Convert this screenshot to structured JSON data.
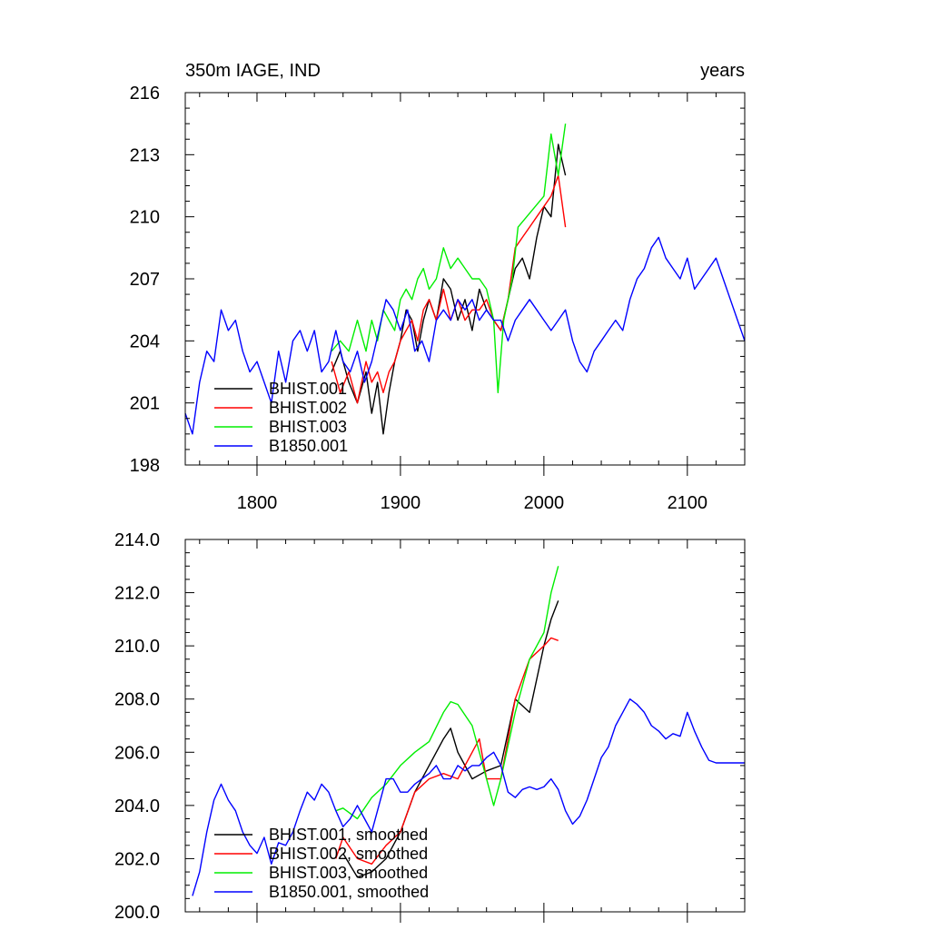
{
  "chart_data": [
    {
      "type": "line",
      "title": "350m IAGE, IND",
      "units": "years",
      "xlim": [
        1750,
        2140
      ],
      "ylim": [
        198,
        216
      ],
      "x_ticks": [
        1800,
        1900,
        2000,
        2100
      ],
      "x_tick_labels": [
        "1800",
        "1900",
        "2000",
        "2100"
      ],
      "y_ticks": [
        198,
        201,
        204,
        207,
        210,
        213,
        216
      ],
      "y_tick_labels": [
        "198",
        "201",
        "204",
        "207",
        "210",
        "213",
        "216"
      ],
      "legend_position": "bottom-left",
      "series": [
        {
          "name": "BHIST.001",
          "color": "#000000",
          "x": [
            1852,
            1858,
            1864,
            1870,
            1876,
            1880,
            1884,
            1888,
            1892,
            1896,
            1900,
            1904,
            1908,
            1912,
            1916,
            1920,
            1925,
            1930,
            1935,
            1940,
            1945,
            1950,
            1955,
            1960,
            1965,
            1970,
            1975,
            1980,
            1985,
            1990,
            1995,
            2000,
            2005,
            2010,
            2015
          ],
          "y": [
            202.5,
            203.5,
            202.0,
            201.0,
            202.5,
            200.5,
            202.0,
            199.5,
            201.5,
            203.0,
            204.0,
            205.5,
            205.0,
            203.5,
            205.0,
            206.0,
            205.0,
            207.0,
            206.5,
            205.0,
            206.0,
            204.5,
            206.5,
            205.5,
            205.0,
            204.5,
            206.0,
            207.5,
            208.0,
            207.0,
            209.0,
            210.5,
            210.0,
            213.5,
            212.0
          ]
        },
        {
          "name": "BHIST.002",
          "color": "#ff0000",
          "x": [
            1852,
            1858,
            1864,
            1870,
            1876,
            1880,
            1884,
            1888,
            1892,
            1896,
            1900,
            1904,
            1908,
            1912,
            1916,
            1920,
            1925,
            1930,
            1935,
            1940,
            1945,
            1950,
            1955,
            1960,
            1965,
            1970,
            1975,
            1980,
            1985,
            1990,
            1995,
            2000,
            2005,
            2010,
            2015
          ],
          "y": [
            203.0,
            201.5,
            202.5,
            201.0,
            203.0,
            202.0,
            202.5,
            201.5,
            202.5,
            203.0,
            204.0,
            204.5,
            205.0,
            204.0,
            205.5,
            206.0,
            205.0,
            206.5,
            205.0,
            206.0,
            205.0,
            205.5,
            205.5,
            206.0,
            205.0,
            204.5,
            206.0,
            208.5,
            209.0,
            209.5,
            210.0,
            210.5,
            211.0,
            212.0,
            209.5
          ]
        },
        {
          "name": "BHIST.003",
          "color": "#00ee00",
          "x": [
            1852,
            1858,
            1864,
            1870,
            1876,
            1880,
            1884,
            1888,
            1892,
            1896,
            1900,
            1904,
            1908,
            1912,
            1916,
            1920,
            1925,
            1930,
            1935,
            1940,
            1945,
            1950,
            1955,
            1960,
            1965,
            1968,
            1972,
            1978,
            1982,
            1988,
            1994,
            2000,
            2005,
            2010,
            2015
          ],
          "y": [
            203.5,
            204.0,
            203.5,
            205.0,
            203.5,
            205.0,
            204.0,
            205.5,
            205.0,
            204.5,
            206.0,
            206.5,
            206.0,
            207.0,
            207.5,
            206.5,
            207.0,
            208.5,
            207.5,
            208.0,
            207.5,
            207.0,
            207.0,
            206.5,
            205.0,
            201.5,
            205.0,
            207.0,
            209.5,
            210.0,
            210.5,
            211.0,
            214.0,
            212.0,
            214.5
          ]
        },
        {
          "name": "B1850.001",
          "color": "#0000ff",
          "x": [
            1750,
            1755,
            1760,
            1765,
            1770,
            1775,
            1780,
            1785,
            1790,
            1795,
            1800,
            1805,
            1810,
            1815,
            1820,
            1825,
            1830,
            1835,
            1840,
            1845,
            1850,
            1855,
            1860,
            1865,
            1870,
            1875,
            1880,
            1885,
            1890,
            1895,
            1900,
            1905,
            1910,
            1915,
            1920,
            1925,
            1930,
            1935,
            1940,
            1945,
            1950,
            1955,
            1960,
            1965,
            1970,
            1975,
            1980,
            1985,
            1990,
            1995,
            2000,
            2005,
            2010,
            2015,
            2020,
            2025,
            2030,
            2035,
            2040,
            2045,
            2050,
            2055,
            2060,
            2065,
            2070,
            2075,
            2080,
            2085,
            2090,
            2095,
            2100,
            2105,
            2110,
            2115,
            2120,
            2125,
            2130,
            2135,
            2140
          ],
          "y": [
            200.5,
            199.5,
            202.0,
            203.5,
            203.0,
            205.5,
            204.5,
            205.0,
            203.5,
            202.5,
            203.0,
            202.0,
            201.0,
            203.5,
            202.0,
            204.0,
            204.5,
            203.5,
            204.5,
            202.5,
            203.0,
            204.5,
            203.0,
            202.5,
            203.5,
            202.0,
            203.0,
            204.5,
            206.0,
            205.5,
            204.5,
            205.5,
            203.5,
            204.0,
            203.0,
            205.0,
            205.5,
            205.0,
            206.0,
            205.5,
            206.0,
            205.0,
            205.5,
            205.0,
            205.0,
            204.0,
            205.0,
            205.5,
            206.0,
            205.5,
            205.0,
            204.5,
            205.0,
            205.5,
            204.0,
            203.0,
            202.5,
            203.5,
            204.0,
            204.5,
            205.0,
            204.5,
            206.0,
            207.0,
            207.5,
            208.5,
            209.0,
            208.0,
            207.5,
            207.0,
            208.0,
            206.5,
            207.0,
            207.5,
            208.0,
            207.0,
            206.0,
            205.0,
            204.0
          ]
        }
      ]
    },
    {
      "type": "line",
      "xlim": [
        1750,
        2140
      ],
      "ylim": [
        200.0,
        214.0
      ],
      "x_ticks": [
        1800,
        1900,
        2000,
        2100
      ],
      "y_ticks": [
        200.0,
        202.0,
        204.0,
        206.0,
        208.0,
        210.0,
        212.0,
        214.0
      ],
      "y_tick_labels": [
        "200.0",
        "202.0",
        "204.0",
        "206.0",
        "208.0",
        "210.0",
        "212.0",
        "214.0"
      ],
      "legend_position": "bottom-left",
      "series": [
        {
          "name": "BHIST.001, smoothed",
          "color": "#000000",
          "x": [
            1860,
            1870,
            1880,
            1890,
            1900,
            1910,
            1920,
            1930,
            1935,
            1940,
            1950,
            1960,
            1970,
            1980,
            1990,
            2000,
            2005,
            2010
          ],
          "y": [
            202.2,
            201.3,
            201.5,
            202.0,
            203.0,
            204.5,
            205.5,
            206.5,
            206.9,
            206.0,
            205.0,
            205.3,
            205.5,
            208.0,
            207.5,
            210.0,
            211.0,
            211.7
          ]
        },
        {
          "name": "BHIST.002, smoothed",
          "color": "#ff0000",
          "x": [
            1855,
            1860,
            1870,
            1880,
            1890,
            1900,
            1910,
            1920,
            1930,
            1940,
            1950,
            1955,
            1960,
            1970,
            1980,
            1990,
            2000,
            2005,
            2010
          ],
          "y": [
            202.0,
            202.8,
            202.0,
            201.8,
            202.5,
            203.0,
            204.5,
            205.0,
            205.2,
            205.0,
            206.0,
            206.5,
            205.0,
            205.0,
            208.0,
            209.5,
            210.0,
            210.3,
            210.2
          ]
        },
        {
          "name": "BHIST.003, smoothed",
          "color": "#00ee00",
          "x": [
            1855,
            1860,
            1870,
            1880,
            1890,
            1900,
            1910,
            1920,
            1930,
            1935,
            1940,
            1950,
            1960,
            1965,
            1970,
            1980,
            1990,
            2000,
            2005,
            2010
          ],
          "y": [
            203.8,
            203.9,
            203.5,
            204.3,
            204.8,
            205.5,
            206.0,
            206.4,
            207.5,
            207.9,
            207.8,
            207.0,
            205.0,
            204.0,
            205.0,
            207.5,
            209.5,
            210.5,
            212.0,
            213.0
          ]
        },
        {
          "name": "B1850.001, smoothed",
          "color": "#0000ff",
          "x": [
            1755,
            1760,
            1765,
            1770,
            1775,
            1780,
            1785,
            1790,
            1795,
            1800,
            1805,
            1810,
            1815,
            1820,
            1825,
            1830,
            1835,
            1840,
            1845,
            1850,
            1855,
            1860,
            1865,
            1870,
            1875,
            1880,
            1885,
            1890,
            1895,
            1900,
            1905,
            1910,
            1915,
            1920,
            1925,
            1930,
            1935,
            1940,
            1945,
            1950,
            1955,
            1960,
            1965,
            1970,
            1975,
            1980,
            1985,
            1990,
            1995,
            2000,
            2005,
            2010,
            2015,
            2020,
            2025,
            2030,
            2035,
            2040,
            2045,
            2050,
            2055,
            2060,
            2065,
            2070,
            2075,
            2080,
            2085,
            2090,
            2095,
            2100,
            2105,
            2110,
            2115,
            2120,
            2125,
            2130,
            2135,
            2140
          ],
          "y": [
            200.6,
            201.5,
            203.0,
            204.2,
            204.8,
            204.2,
            203.8,
            203.0,
            202.5,
            202.2,
            202.8,
            201.8,
            202.6,
            202.5,
            203.0,
            203.8,
            204.5,
            204.2,
            204.8,
            204.5,
            203.8,
            203.2,
            203.5,
            204.0,
            203.5,
            203.0,
            204.0,
            205.0,
            205.0,
            204.5,
            204.5,
            204.8,
            205.0,
            205.2,
            205.5,
            205.0,
            205.0,
            205.5,
            205.3,
            205.5,
            205.5,
            205.8,
            206.0,
            205.5,
            204.5,
            204.3,
            204.6,
            204.7,
            204.6,
            204.7,
            205.0,
            204.6,
            203.8,
            203.3,
            203.6,
            204.2,
            205.0,
            205.8,
            206.2,
            207.0,
            207.5,
            208.0,
            207.8,
            207.5,
            207.0,
            206.8,
            206.5,
            206.7,
            206.6,
            207.5,
            206.8,
            206.2,
            205.7,
            205.6,
            205.6,
            205.6,
            205.6,
            205.6
          ]
        }
      ]
    }
  ]
}
